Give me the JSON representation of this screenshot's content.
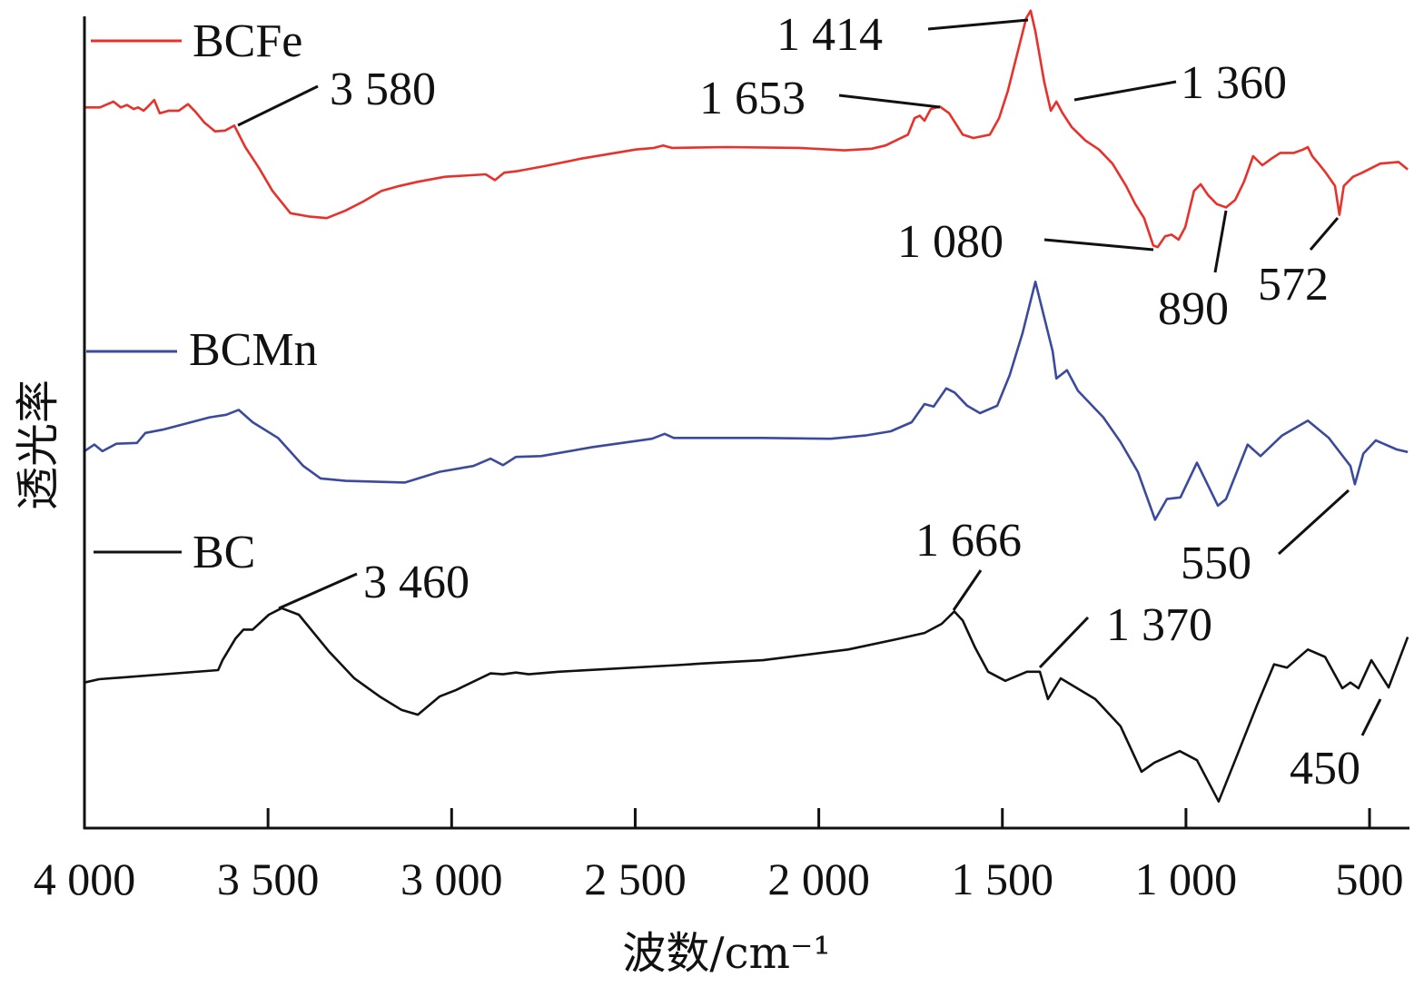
{
  "chart_data": {
    "type": "line",
    "title": "",
    "xlabel": "波数/cm⁻¹",
    "ylabel": "透光率",
    "xlim": [
      4000,
      396
    ],
    "ylim": [
      0,
      100
    ],
    "y_units": "arbitrary (relative transmittance, curves offset)",
    "grid": false,
    "legend_placement": "left, beside each curve",
    "xticks": [
      {
        "value": 4000,
        "label": "4 000"
      },
      {
        "value": 3500,
        "label": "3 500"
      },
      {
        "value": 3000,
        "label": "3 000"
      },
      {
        "value": 2500,
        "label": "2 500"
      },
      {
        "value": 2000,
        "label": "2 000"
      },
      {
        "value": 1500,
        "label": "1 500"
      },
      {
        "value": 1000,
        "label": "1 000"
      },
      {
        "value": 500,
        "label": "500"
      }
    ],
    "series": [
      {
        "name": "BCFe",
        "color": "#e8312a",
        "points": [
          [
            4000,
            87.0
          ],
          [
            3958,
            87.0
          ],
          [
            3921,
            87.7
          ],
          [
            3901,
            87.0
          ],
          [
            3884,
            87.3
          ],
          [
            3866,
            86.8
          ],
          [
            3854,
            87.0
          ],
          [
            3839,
            86.6
          ],
          [
            3827,
            87.1
          ],
          [
            3810,
            87.9
          ],
          [
            3795,
            86.3
          ],
          [
            3770,
            86.6
          ],
          [
            3743,
            86.6
          ],
          [
            3718,
            87.4
          ],
          [
            3698,
            86.5
          ],
          [
            3674,
            85.2
          ],
          [
            3644,
            84.1
          ],
          [
            3617,
            84.2
          ],
          [
            3592,
            84.8
          ],
          [
            3562,
            82.2
          ],
          [
            3525,
            79.7
          ],
          [
            3488,
            76.9
          ],
          [
            3439,
            74.2
          ],
          [
            3389,
            73.8
          ],
          [
            3340,
            73.6
          ],
          [
            3290,
            74.5
          ],
          [
            3241,
            75.6
          ],
          [
            3191,
            76.9
          ],
          [
            3142,
            77.5
          ],
          [
            3092,
            78.0
          ],
          [
            3018,
            78.6
          ],
          [
            2907,
            78.9
          ],
          [
            2882,
            78.2
          ],
          [
            2857,
            79.1
          ],
          [
            2820,
            79.3
          ],
          [
            2746,
            79.9
          ],
          [
            2647,
            80.8
          ],
          [
            2499,
            81.9
          ],
          [
            2449,
            82.1
          ],
          [
            2424,
            82.4
          ],
          [
            2400,
            82.1
          ],
          [
            2251,
            82.2
          ],
          [
            2053,
            82.1
          ],
          [
            1930,
            81.8
          ],
          [
            1856,
            82.0
          ],
          [
            1818,
            82.4
          ],
          [
            1781,
            83.2
          ],
          [
            1757,
            83.7
          ],
          [
            1739,
            85.7
          ],
          [
            1725,
            86.0
          ],
          [
            1712,
            85.4
          ],
          [
            1695,
            86.8
          ],
          [
            1670,
            87.1
          ],
          [
            1645,
            86.3
          ],
          [
            1608,
            83.7
          ],
          [
            1579,
            83.3
          ],
          [
            1534,
            83.7
          ],
          [
            1509,
            85.7
          ],
          [
            1485,
            89.0
          ],
          [
            1460,
            93.4
          ],
          [
            1435,
            97.8
          ],
          [
            1423,
            98.7
          ],
          [
            1410,
            96.2
          ],
          [
            1386,
            90.1
          ],
          [
            1368,
            86.6
          ],
          [
            1353,
            87.7
          ],
          [
            1336,
            86.3
          ],
          [
            1311,
            84.6
          ],
          [
            1274,
            83.0
          ],
          [
            1237,
            81.9
          ],
          [
            1200,
            80.2
          ],
          [
            1163,
            77.5
          ],
          [
            1138,
            75.3
          ],
          [
            1114,
            73.6
          ],
          [
            1089,
            70.3
          ],
          [
            1077,
            70.1
          ],
          [
            1057,
            71.4
          ],
          [
            1039,
            71.6
          ],
          [
            1020,
            71.0
          ],
          [
            1002,
            72.5
          ],
          [
            978,
            76.9
          ],
          [
            960,
            77.7
          ],
          [
            940,
            76.4
          ],
          [
            916,
            75.3
          ],
          [
            891,
            74.9
          ],
          [
            866,
            75.8
          ],
          [
            842,
            78.0
          ],
          [
            817,
            81.1
          ],
          [
            792,
            80.0
          ],
          [
            767,
            80.8
          ],
          [
            743,
            81.5
          ],
          [
            706,
            81.5
          ],
          [
            681,
            81.9
          ],
          [
            668,
            82.2
          ],
          [
            656,
            81.1
          ],
          [
            639,
            80.2
          ],
          [
            619,
            79.1
          ],
          [
            594,
            77.5
          ],
          [
            582,
            74.0
          ],
          [
            570,
            77.5
          ],
          [
            545,
            78.6
          ],
          [
            520,
            79.1
          ],
          [
            471,
            80.2
          ],
          [
            421,
            80.4
          ],
          [
            396,
            79.5
          ]
        ]
      },
      {
        "name": "BCMn",
        "color": "#3b4a9c",
        "points": [
          [
            4000,
            45.4
          ],
          [
            3973,
            46.2
          ],
          [
            3951,
            45.4
          ],
          [
            3913,
            46.3
          ],
          [
            3857,
            46.4
          ],
          [
            3834,
            47.6
          ],
          [
            3787,
            48.0
          ],
          [
            3659,
            49.5
          ],
          [
            3614,
            49.8
          ],
          [
            3580,
            50.4
          ],
          [
            3542,
            48.9
          ],
          [
            3473,
            47.0
          ],
          [
            3404,
            43.6
          ],
          [
            3357,
            42.1
          ],
          [
            3288,
            41.8
          ],
          [
            3127,
            41.6
          ],
          [
            3033,
            42.9
          ],
          [
            2941,
            43.6
          ],
          [
            2894,
            44.5
          ],
          [
            2860,
            43.7
          ],
          [
            2825,
            44.7
          ],
          [
            2756,
            44.8
          ],
          [
            2615,
            45.9
          ],
          [
            2454,
            46.9
          ],
          [
            2420,
            47.5
          ],
          [
            2395,
            47.0
          ],
          [
            2152,
            47.0
          ],
          [
            1967,
            46.9
          ],
          [
            1873,
            47.3
          ],
          [
            1804,
            47.8
          ],
          [
            1747,
            48.9
          ],
          [
            1712,
            51.1
          ],
          [
            1687,
            50.8
          ],
          [
            1653,
            53.0
          ],
          [
            1630,
            52.5
          ],
          [
            1596,
            50.9
          ],
          [
            1561,
            50.0
          ],
          [
            1514,
            50.9
          ],
          [
            1480,
            54.6
          ],
          [
            1445,
            59.7
          ],
          [
            1410,
            65.9
          ],
          [
            1363,
            57.5
          ],
          [
            1353,
            54.2
          ],
          [
            1324,
            55.2
          ],
          [
            1294,
            52.7
          ],
          [
            1225,
            49.5
          ],
          [
            1178,
            46.5
          ],
          [
            1131,
            42.9
          ],
          [
            1084,
            37.1
          ],
          [
            1052,
            39.6
          ],
          [
            1015,
            39.8
          ],
          [
            970,
            44.0
          ],
          [
            913,
            38.8
          ],
          [
            891,
            39.6
          ],
          [
            832,
            46.2
          ],
          [
            797,
            44.8
          ],
          [
            738,
            47.3
          ],
          [
            668,
            49.1
          ],
          [
            611,
            47.0
          ],
          [
            552,
            43.6
          ],
          [
            540,
            41.4
          ],
          [
            517,
            45.1
          ],
          [
            483,
            46.7
          ],
          [
            426,
            45.6
          ],
          [
            396,
            45.3
          ]
        ]
      },
      {
        "name": "BC",
        "color": "#111111",
        "points": [
          [
            4000,
            17.4
          ],
          [
            3960,
            17.8
          ],
          [
            3636,
            18.9
          ],
          [
            3624,
            20.1
          ],
          [
            3589,
            22.7
          ],
          [
            3567,
            23.8
          ],
          [
            3542,
            23.8
          ],
          [
            3498,
            25.6
          ],
          [
            3463,
            26.4
          ],
          [
            3416,
            25.6
          ],
          [
            3335,
            21.2
          ],
          [
            3265,
            17.9
          ],
          [
            3196,
            15.7
          ],
          [
            3137,
            14.1
          ],
          [
            3092,
            13.5
          ],
          [
            3033,
            15.7
          ],
          [
            2988,
            16.5
          ],
          [
            2894,
            18.5
          ],
          [
            2860,
            18.4
          ],
          [
            2825,
            18.6
          ],
          [
            2790,
            18.4
          ],
          [
            2709,
            18.7
          ],
          [
            2385,
            19.5
          ],
          [
            2316,
            19.7
          ],
          [
            2152,
            20.1
          ],
          [
            1920,
            21.4
          ],
          [
            1781,
            22.7
          ],
          [
            1712,
            23.4
          ],
          [
            1665,
            24.5
          ],
          [
            1631,
            26.0
          ],
          [
            1608,
            24.9
          ],
          [
            1574,
            21.6
          ],
          [
            1539,
            18.7
          ],
          [
            1492,
            17.6
          ],
          [
            1433,
            18.7
          ],
          [
            1398,
            18.7
          ],
          [
            1376,
            15.4
          ],
          [
            1341,
            17.9
          ],
          [
            1247,
            15.4
          ],
          [
            1178,
            12.1
          ],
          [
            1121,
            6.6
          ],
          [
            1086,
            7.7
          ],
          [
            1017,
            9.1
          ],
          [
            970,
            8.0
          ],
          [
            911,
            3.0
          ],
          [
            866,
            8.0
          ],
          [
            807,
            14.6
          ],
          [
            760,
            19.6
          ],
          [
            725,
            19.2
          ],
          [
            668,
            21.4
          ],
          [
            621,
            20.5
          ],
          [
            574,
            16.7
          ],
          [
            552,
            17.4
          ],
          [
            530,
            16.7
          ],
          [
            495,
            20.1
          ],
          [
            448,
            16.8
          ],
          [
            396,
            22.9
          ]
        ]
      }
    ],
    "annotations": [
      {
        "series": "BCFe",
        "label": "3 580",
        "wavenumber": 3580
      },
      {
        "series": "BCFe",
        "label": "1 653",
        "wavenumber": 1653
      },
      {
        "series": "BCFe",
        "label": "1 414",
        "wavenumber": 1414
      },
      {
        "series": "BCFe",
        "label": "1 360",
        "wavenumber": 1360
      },
      {
        "series": "BCFe",
        "label": "1 080",
        "wavenumber": 1080
      },
      {
        "series": "BCFe",
        "label": "890",
        "wavenumber": 890
      },
      {
        "series": "BCFe",
        "label": "572",
        "wavenumber": 572
      },
      {
        "series": "BCMn",
        "label": "550",
        "wavenumber": 550
      },
      {
        "series": "BC",
        "label": "3 460",
        "wavenumber": 3460
      },
      {
        "series": "BC",
        "label": "1 666",
        "wavenumber": 1666
      },
      {
        "series": "BC",
        "label": "1 370",
        "wavenumber": 1370
      },
      {
        "series": "BC",
        "label": "450",
        "wavenumber": 450
      }
    ]
  }
}
